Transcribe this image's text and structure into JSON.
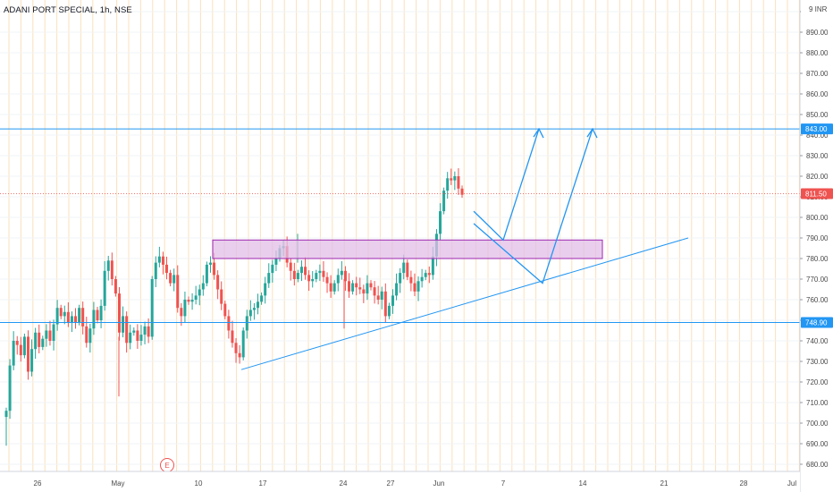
{
  "symbol_title": "ADANI PORT SPECIAL, 1h, NSE",
  "currency": "INR",
  "earnings_marker": "E",
  "colors": {
    "up": "#26a69a",
    "down": "#ef5350",
    "trend_line": "#2196f3",
    "zone_fill": "#e1bee7",
    "zone_border": "#9c27b0",
    "price_label_red": "#ef5350",
    "price_label_blue": "#2196f3"
  },
  "chart_data": {
    "type": "candlestick",
    "y_ticks": [
      "900.00",
      "890.00",
      "880.00",
      "870.00",
      "860.00",
      "850.00",
      "840.00",
      "830.00",
      "820.00",
      "810.00",
      "800.00",
      "790.00",
      "780.00",
      "770.00",
      "760.00",
      "750.00",
      "740.00",
      "730.00",
      "720.00",
      "710.00",
      "700.00",
      "690.00",
      "680.00"
    ],
    "x_ticks": [
      "26",
      "May",
      "10",
      "17",
      "24",
      "27",
      "Jun",
      "7",
      "14",
      "21",
      "28",
      "Jul"
    ],
    "ylim": [
      675,
      902
    ],
    "current_price": "811.50",
    "horizontal_levels": [
      "843.00",
      "748.90"
    ],
    "supply_zone": [
      780,
      789
    ],
    "trendline": {
      "from": [
        270,
        726
      ],
      "to": [
        770,
        790
      ]
    },
    "projection_paths": [
      {
        "points": [
          [
            530,
            803
          ],
          [
            563,
            789
          ],
          [
            603,
            843
          ]
        ]
      },
      {
        "points": [
          [
            530,
            797
          ],
          [
            607,
            768
          ],
          [
            663,
            843
          ]
        ]
      }
    ],
    "close_series": [
      706,
      728,
      740,
      738,
      733,
      742,
      725,
      736,
      744,
      737,
      741,
      745,
      740,
      748,
      756,
      752,
      754,
      749,
      752,
      749,
      756,
      747,
      739,
      746,
      755,
      750,
      757,
      774,
      779,
      770,
      763,
      744,
      752,
      739,
      744,
      745,
      740,
      743,
      747,
      742,
      770,
      778,
      781,
      777,
      773,
      768,
      772,
      756,
      752,
      760,
      759,
      760,
      762,
      765,
      768,
      777,
      778,
      772,
      765,
      758,
      752,
      745,
      739,
      734,
      732,
      745,
      752,
      755,
      756,
      759,
      762,
      768,
      773,
      777,
      780,
      785,
      786,
      778,
      774,
      770,
      773,
      776,
      772,
      769,
      770,
      773,
      774,
      771,
      768,
      764,
      768,
      772,
      774,
      769,
      764,
      768,
      766,
      765,
      763,
      768,
      766,
      762,
      760,
      764,
      752,
      757,
      762,
      768,
      773,
      778,
      771,
      768,
      764,
      769,
      771,
      773,
      772,
      781,
      792,
      803,
      813,
      819,
      818,
      820,
      814,
      811
    ]
  }
}
